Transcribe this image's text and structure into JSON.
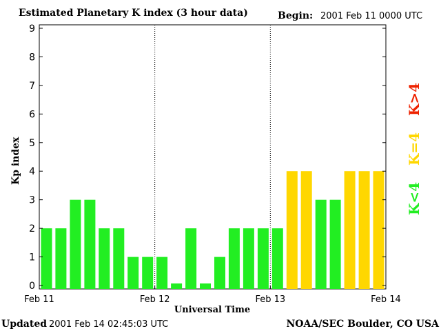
{
  "chart_data": {
    "type": "bar",
    "title": "Estimated Planetary K index (3 hour data)",
    "begin_label": "Begin:",
    "begin_value": "2001 Feb 11 0000 UTC",
    "xlabel": "Universal Time",
    "ylabel": "Kp index",
    "ylim": [
      0,
      9
    ],
    "y_ticks": [
      "0",
      "1",
      "2",
      "3",
      "4",
      "5",
      "6",
      "7",
      "8",
      "9"
    ],
    "x_ticks": [
      "Feb 11",
      "Feb 12",
      "Feb 13",
      "Feb 14"
    ],
    "day_separators": true,
    "values": [
      2,
      2,
      3,
      3,
      2,
      2,
      1,
      1,
      1,
      0.07,
      2,
      0.07,
      1,
      2,
      2,
      2,
      2,
      4,
      4,
      3,
      3,
      4,
      4,
      4
    ],
    "colors": {
      "low": "#22ee22",
      "equal": "#ffd700",
      "high": "#ee2200"
    },
    "legend": {
      "placement": "right",
      "low": "K<4",
      "equal": "K=4",
      "high": "K>4"
    }
  },
  "footer": {
    "updated_label": "Updated",
    "updated_value": "2001 Feb 14 02:45:03 UTC",
    "source": "NOAA/SEC Boulder, CO USA"
  }
}
